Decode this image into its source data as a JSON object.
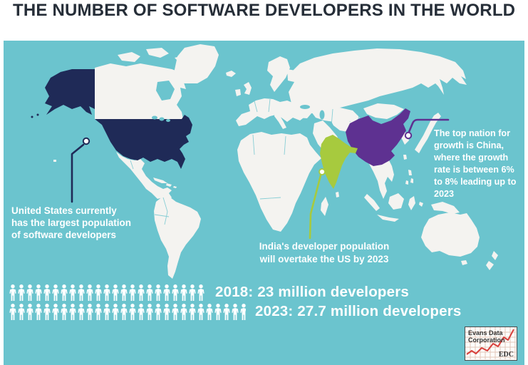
{
  "title": "THE NUMBER OF SOFTWARE DEVELOPERS IN THE WORLD",
  "colors": {
    "panel": "#6bc4ce",
    "land": "#f4f3f0",
    "us": "#1f2a57",
    "china": "#5e3191",
    "india": "#a7ca3e",
    "title": "#262e38",
    "text": "#ffffff",
    "icon": "#ffffff",
    "logo_line": "#d8403c",
    "logo_grid": "#e4c6ba",
    "logo_text": "#333333"
  },
  "annotations": {
    "us": {
      "text": "United States currently\nhas the largest population\nof software developers"
    },
    "india": {
      "text": "India's developer population\nwill overtake the US by 2023"
    },
    "china": {
      "text": "The top nation for\ngrowth is China,\nwhere the growth\nrate is between 6%\nto 8% leading up to\n2023"
    }
  },
  "stats": [
    {
      "year": "2018",
      "count": 23,
      "label": "2018: 23 million developers"
    },
    {
      "year": "2023",
      "count": 27.7,
      "label": "2023: 27.7 million developers"
    }
  ],
  "logo": {
    "name": "Evans Data\nCorporation",
    "abbr": "EDC"
  },
  "chart_data": {
    "type": "pictogram",
    "title": "THE NUMBER OF SOFTWARE DEVELOPERS IN THE WORLD",
    "unit_per_icon": "1 person icon = 1 million developers",
    "categories": [
      "2018",
      "2023"
    ],
    "values": [
      23,
      27.7
    ],
    "value_labels": [
      "2018: 23 million developers",
      "2023: 27.7 million developers"
    ],
    "legend_position": "none",
    "map_highlights": [
      {
        "country": "United States",
        "color": "#1f2a57",
        "fact": "United States currently has the largest population of software developers"
      },
      {
        "country": "India",
        "color": "#a7ca3e",
        "fact": "India's developer population will overtake the US by 2023"
      },
      {
        "country": "China",
        "color": "#5e3191",
        "fact": "The top nation for growth is China, where the growth rate is between 6% to 8% leading up to 2023"
      }
    ],
    "source": "Evans Data Corporation (EDC)"
  }
}
